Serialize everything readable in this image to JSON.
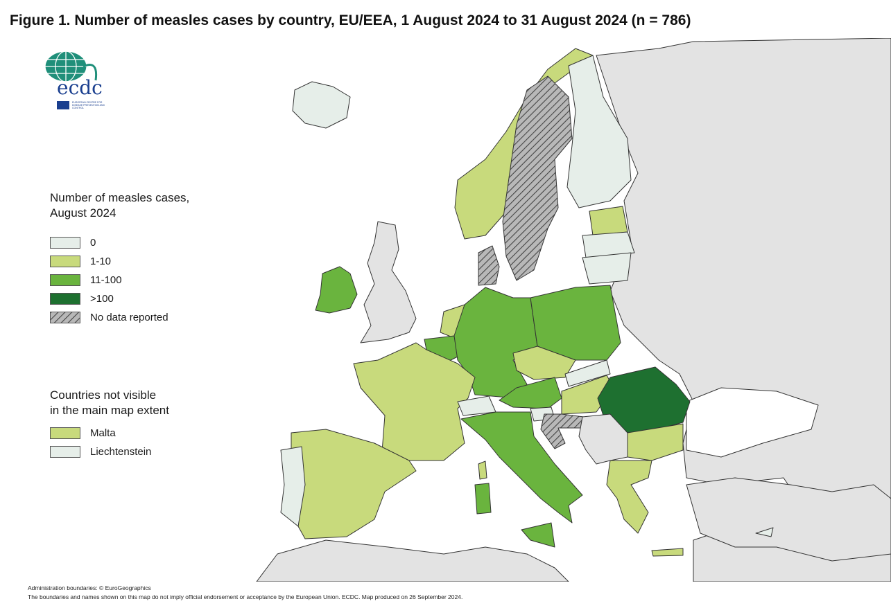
{
  "title": "Figure 1. Number of measles cases by country, EU/EEA, 1 August 2024 to 31 August 2024 (n = 786)",
  "logo": {
    "text": "ecdc",
    "subtext": "EUROPEAN CENTRE FOR DISEASE PREVENTION AND CONTROL"
  },
  "legend": {
    "title_line1": "Number of measles cases,",
    "title_line2": "August 2024",
    "items": [
      {
        "label": "0",
        "color": "#e6eee9"
      },
      {
        "label": "1-10",
        "color": "#c8da7c"
      },
      {
        "label": "11-100",
        "color": "#6ab43e"
      },
      {
        "label": ">100",
        "color": "#1e7030"
      },
      {
        "label": "No data reported",
        "color": "hatched-grey"
      }
    ]
  },
  "not_visible": {
    "title_line1": "Countries not visible",
    "title_line2": "in the main map extent",
    "items": [
      {
        "label": "Malta",
        "color": "#c8da7c"
      },
      {
        "label": "Liechtenstein",
        "color": "#e6eee9"
      }
    ]
  },
  "footer": {
    "line1": "Administration boundaries: © EuroGeographics",
    "line2": "The boundaries and names shown on this map do not imply official endorsement or acceptance by the European Union. ECDC. Map produced on 26 September 2024."
  },
  "colors": {
    "zero": "#e6eee9",
    "low": "#c8da7c",
    "mid": "#6ab43e",
    "high": "#1e7030",
    "non_eu": "#e3e3e3",
    "sea": "#ffffff"
  }
}
